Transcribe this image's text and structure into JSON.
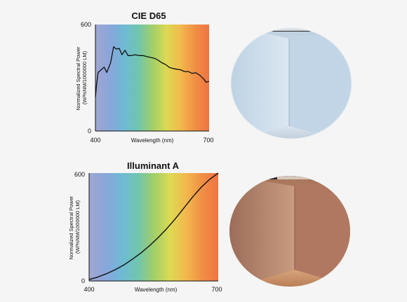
{
  "chart_data": [
    {
      "type": "line",
      "title": "CIE D65",
      "xlabel": "Wavelength (nm)",
      "ylabel": "Normalized Spectral Power (W/%NM/1000000 LM)",
      "xlim": [
        400,
        700
      ],
      "ylim": [
        0,
        600
      ],
      "x_tick_labels": [
        "400",
        "700"
      ],
      "y_tick_labels": [
        "0",
        "600"
      ],
      "series": [
        {
          "values": [
            {
              "x": 400,
              "y": 190
            },
            {
              "x": 403,
              "y": 260
            },
            {
              "x": 407,
              "y": 330
            },
            {
              "x": 415,
              "y": 345
            },
            {
              "x": 423,
              "y": 360
            },
            {
              "x": 430,
              "y": 330
            },
            {
              "x": 440,
              "y": 385
            },
            {
              "x": 448,
              "y": 475
            },
            {
              "x": 455,
              "y": 462
            },
            {
              "x": 463,
              "y": 465
            },
            {
              "x": 470,
              "y": 430
            },
            {
              "x": 478,
              "y": 455
            },
            {
              "x": 486,
              "y": 425
            },
            {
              "x": 495,
              "y": 425
            },
            {
              "x": 505,
              "y": 430
            },
            {
              "x": 515,
              "y": 425
            },
            {
              "x": 525,
              "y": 425
            },
            {
              "x": 535,
              "y": 420
            },
            {
              "x": 545,
              "y": 415
            },
            {
              "x": 555,
              "y": 410
            },
            {
              "x": 565,
              "y": 400
            },
            {
              "x": 575,
              "y": 385
            },
            {
              "x": 585,
              "y": 375
            },
            {
              "x": 595,
              "y": 358
            },
            {
              "x": 605,
              "y": 352
            },
            {
              "x": 615,
              "y": 348
            },
            {
              "x": 625,
              "y": 345
            },
            {
              "x": 635,
              "y": 335
            },
            {
              "x": 645,
              "y": 335
            },
            {
              "x": 655,
              "y": 325
            },
            {
              "x": 665,
              "y": 328
            },
            {
              "x": 675,
              "y": 315
            },
            {
              "x": 685,
              "y": 295
            },
            {
              "x": 692,
              "y": 275
            },
            {
              "x": 700,
              "y": 280
            }
          ],
          "color": "#111111"
        }
      ]
    },
    {
      "type": "line",
      "title": "Illuminant A",
      "xlabel": "Wavelength (nm)",
      "ylabel": "Normalized Spectral Power (W/%NM/1000000 LM)",
      "xlim": [
        400,
        700
      ],
      "ylim": [
        0,
        600
      ],
      "x_tick_labels": [
        "400",
        "700"
      ],
      "y_tick_labels": [
        "0",
        "600"
      ],
      "series": [
        {
          "values": [
            {
              "x": 400,
              "y": 8
            },
            {
              "x": 420,
              "y": 22
            },
            {
              "x": 440,
              "y": 40
            },
            {
              "x": 460,
              "y": 62
            },
            {
              "x": 480,
              "y": 88
            },
            {
              "x": 500,
              "y": 120
            },
            {
              "x": 520,
              "y": 155
            },
            {
              "x": 540,
              "y": 195
            },
            {
              "x": 560,
              "y": 240
            },
            {
              "x": 580,
              "y": 290
            },
            {
              "x": 600,
              "y": 345
            },
            {
              "x": 620,
              "y": 405
            },
            {
              "x": 640,
              "y": 465
            },
            {
              "x": 660,
              "y": 520
            },
            {
              "x": 680,
              "y": 565
            },
            {
              "x": 700,
              "y": 600
            }
          ],
          "color": "#111111"
        }
      ]
    }
  ],
  "spectrum_colors": [
    "#2e3f9c",
    "#3c6cc4",
    "#3fa3c8",
    "#4ab69a",
    "#8ec54c",
    "#d8d43a",
    "#f2b23c",
    "#f08a3c",
    "#ef7444"
  ],
  "room_images": [
    {
      "name": "daylight-room-photo",
      "tint": "#c7d9ea"
    },
    {
      "name": "incandescent-room-photo",
      "tint": "#b07a5a"
    }
  ]
}
